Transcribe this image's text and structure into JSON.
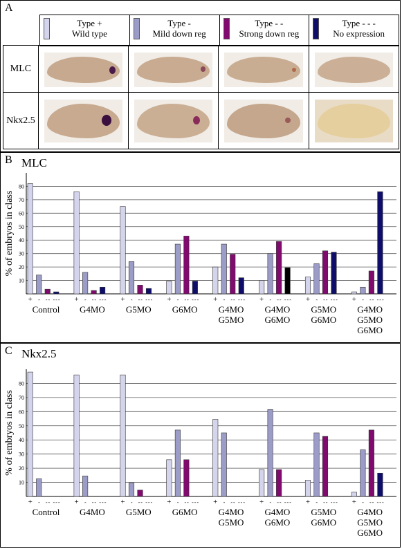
{
  "panel_a": {
    "letter": "A",
    "legend": [
      {
        "line1": "Type +",
        "line2": "Wild type",
        "color": "#d4d4ec"
      },
      {
        "line1": "Type -",
        "line2": "Mild down reg",
        "color": "#9c9cc8"
      },
      {
        "line1": "Type - -",
        "line2": "Strong down reg",
        "color": "#800a6e"
      },
      {
        "line1": "Type - - -",
        "line2": "No expression",
        "color": "#0e0e6a"
      }
    ],
    "rows": [
      "MLC",
      "Nkx2.5"
    ]
  },
  "panel_b": {
    "letter": "B",
    "title": "MLC"
  },
  "panel_c": {
    "letter": "C",
    "title": "Nkx2.5"
  },
  "class_tick_labels": [
    "+",
    "-",
    "- -",
    "- - -"
  ],
  "colors": {
    "type_plus": "#d4d4ec",
    "type_minus": "#9c9cc8",
    "type_minus2": "#800a6e",
    "type_minus3": "#0e0e6a",
    "highlight_black": "#000000"
  },
  "chart_data": [
    {
      "type": "bar",
      "title": "MLC",
      "ylabel": "% of embryos in class",
      "ylim": [
        0,
        90
      ],
      "yticks": [
        10,
        20,
        30,
        40,
        50,
        60,
        70,
        80
      ],
      "grid": true,
      "series_names": [
        "Type +",
        "Type -",
        "Type - -",
        "Type - - -"
      ],
      "groups": [
        {
          "label": [
            "Control"
          ],
          "values": [
            82,
            14,
            3.5,
            1.5
          ]
        },
        {
          "label": [
            "G4MO"
          ],
          "values": [
            76,
            16,
            2.5,
            5
          ]
        },
        {
          "label": [
            "G5MO"
          ],
          "values": [
            65,
            24,
            6.5,
            4
          ]
        },
        {
          "label": [
            "G6MO"
          ],
          "values": [
            9.5,
            37,
            43,
            9.5
          ]
        },
        {
          "label": [
            "G4MO",
            "G5MO"
          ],
          "values": [
            20,
            37,
            29.5,
            12
          ]
        },
        {
          "label": [
            "G4MO",
            "G6MO"
          ],
          "values": [
            10,
            30,
            39,
            19.5
          ],
          "black_last": true
        },
        {
          "label": [
            "G5MO",
            "G6MO"
          ],
          "values": [
            12.5,
            22.5,
            32,
            31
          ]
        },
        {
          "label": [
            "G4MO",
            "G5MO",
            "G6MO"
          ],
          "values": [
            1.5,
            5,
            17,
            76
          ]
        }
      ]
    },
    {
      "type": "bar",
      "title": "Nkx2.5",
      "ylabel": "% of embryos in class",
      "ylim": [
        0,
        90
      ],
      "yticks": [
        10,
        20,
        30,
        40,
        50,
        60,
        70,
        80
      ],
      "grid": true,
      "series_names": [
        "Type +",
        "Type -",
        "Type - -",
        "Type - - -"
      ],
      "groups": [
        {
          "label": [
            "Control"
          ],
          "values": [
            88,
            12.5,
            0,
            0
          ]
        },
        {
          "label": [
            "G4MO"
          ],
          "values": [
            86,
            14.5,
            0,
            0
          ]
        },
        {
          "label": [
            "G5MO"
          ],
          "values": [
            86,
            9.5,
            4.5,
            0
          ]
        },
        {
          "label": [
            "G6MO"
          ],
          "values": [
            26,
            47,
            26,
            0
          ]
        },
        {
          "label": [
            "G4MO",
            "G5MO"
          ],
          "values": [
            54.5,
            45,
            0,
            0
          ]
        },
        {
          "label": [
            "G4MO",
            "G6MO"
          ],
          "values": [
            19,
            61.5,
            19,
            0
          ]
        },
        {
          "label": [
            "G5MO",
            "G6MO"
          ],
          "values": [
            11.5,
            45,
            42.5,
            0
          ]
        },
        {
          "label": [
            "G4MO",
            "G5MO",
            "G6MO"
          ],
          "values": [
            3,
            33,
            47,
            16.5
          ]
        }
      ]
    }
  ]
}
